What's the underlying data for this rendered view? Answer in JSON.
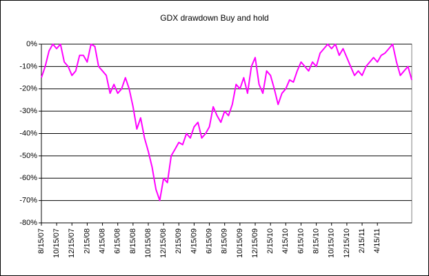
{
  "chart_data": {
    "type": "line",
    "title": "GDX drawdown Buy and hold",
    "categories": [
      "8/15/07",
      null,
      null,
      null,
      "10/15/07",
      null,
      null,
      null,
      "12/15/07",
      null,
      null,
      null,
      "2/15/08",
      null,
      null,
      null,
      "4/15/08",
      null,
      null,
      null,
      "6/15/08",
      null,
      null,
      null,
      "8/15/08",
      null,
      null,
      null,
      "10/15/08",
      null,
      null,
      null,
      "12/15/08",
      null,
      null,
      null,
      "2/15/09",
      null,
      null,
      null,
      "4/15/09",
      null,
      null,
      null,
      "6/15/09",
      null,
      null,
      null,
      "8/15/09",
      null,
      null,
      null,
      "10/15/09",
      null,
      null,
      null,
      "12/15/09",
      null,
      null,
      null,
      "2/15/10",
      null,
      null,
      null,
      "4/15/10",
      null,
      null,
      null,
      "6/15/10",
      null,
      null,
      null,
      "8/15/10",
      null,
      null,
      null,
      "10/15/10",
      null,
      null,
      null,
      "12/15/10",
      null,
      null,
      null,
      "2/15/11",
      null,
      null,
      null,
      "4/15/11",
      null,
      null,
      null,
      null,
      null,
      null,
      null,
      null,
      null
    ],
    "series": [
      {
        "name": "GDX",
        "color": "#ff00ff",
        "values": [
          -15,
          -10,
          -3,
          0,
          -2,
          0,
          -8,
          -10,
          -14,
          -12,
          -5,
          -5,
          -8,
          0,
          -1,
          -10,
          -12,
          -14,
          -22,
          -18,
          -22,
          -20,
          -15,
          -20,
          -28,
          -38,
          -33,
          -42,
          -48,
          -55,
          -65,
          -70,
          -60,
          -62,
          -50,
          -47,
          -44,
          -45,
          -40,
          -42,
          -37,
          -35,
          -42,
          -40,
          -37,
          -28,
          -32,
          -35,
          -30,
          -32,
          -27,
          -18,
          -20,
          -15,
          -22,
          -10,
          -6,
          -18,
          -22,
          -12,
          -14,
          -20,
          -27,
          -22,
          -20,
          -16,
          -17,
          -12,
          -8,
          -10,
          -12,
          -8,
          -10,
          -4,
          -2,
          0,
          -2,
          0,
          -5,
          -2,
          -6,
          -10,
          -14,
          -12,
          -14,
          -10,
          -8,
          -6,
          -8,
          -5,
          -4,
          -2,
          0,
          -8,
          -14,
          -12,
          -10,
          -16
        ]
      }
    ],
    "ylim": [
      -80,
      0
    ],
    "yticks": [
      {
        "value": 0,
        "label": "0%"
      },
      {
        "value": -10,
        "label": "-10%"
      },
      {
        "value": -20,
        "label": "-20%"
      },
      {
        "value": -30,
        "label": "-30%"
      },
      {
        "value": -40,
        "label": "-40%"
      },
      {
        "value": -50,
        "label": "-50%"
      },
      {
        "value": -60,
        "label": "-60%"
      },
      {
        "value": -70,
        "label": "-70%"
      },
      {
        "value": -80,
        "label": "-80%"
      }
    ],
    "grid": true
  }
}
